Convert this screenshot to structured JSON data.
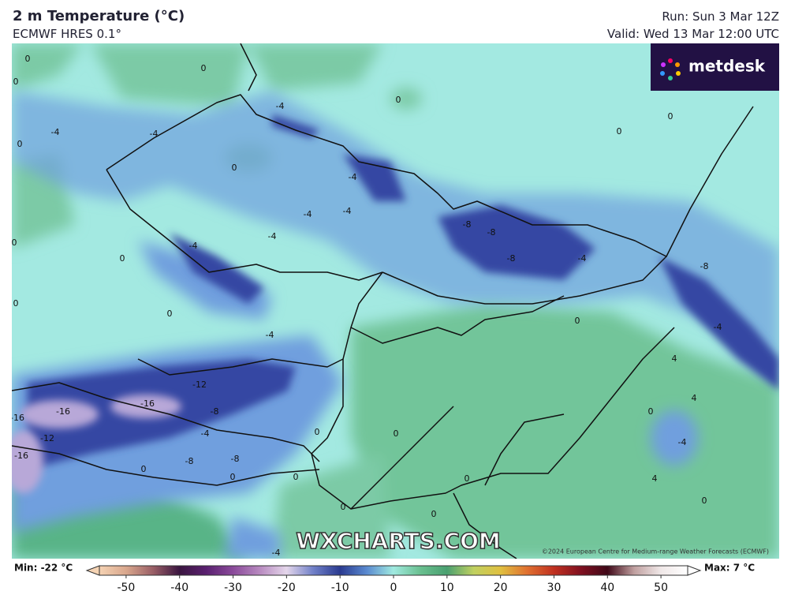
{
  "header": {
    "title": "2 m Temperature (°C)",
    "subtitle": "ECMWF HRES 0.1°",
    "run": "Run: Sun 3 Mar 12Z",
    "valid": "Valid: Wed 13 Mar 12:00 UTC"
  },
  "logo": "metdesk",
  "watermark": "WXCHARTS.COM",
  "copyright": "©2024 European Centre for Medium-range Weather Forecasts (ECMWF)",
  "contour_labels": [
    0,
    -4,
    0,
    0,
    -4,
    -4,
    0,
    0,
    0,
    0,
    -4,
    -4,
    -4,
    -4,
    -4,
    0,
    -8,
    -8,
    -8,
    -4,
    -8,
    -4,
    0,
    0,
    -4,
    -12,
    -16,
    -16,
    -12,
    -16,
    -16,
    -8,
    -4,
    -8,
    -8,
    0,
    0,
    0,
    0,
    0,
    0,
    0,
    0,
    -4,
    4,
    4,
    4,
    0,
    -4,
    0,
    0,
    0,
    0
  ],
  "colorbar": {
    "min_label": "Min: -22 °C",
    "max_label": "Max: 7 °C",
    "lim": [
      -55,
      55
    ],
    "ticks": [
      -50,
      -40,
      -30,
      -20,
      -10,
      0,
      10,
      20,
      30,
      40,
      50
    ],
    "colors": [
      "#f5d3b3",
      "#d9a78d",
      "#9a5f66",
      "#3a1540",
      "#5a2070",
      "#8a4a9a",
      "#b88ac0",
      "#e4d6ea",
      "#7080c8",
      "#2a3a90",
      "#5a8ad0",
      "#a0eae0",
      "#6ac090",
      "#4aa070",
      "#c0d060",
      "#e0c040",
      "#e07030",
      "#c03020",
      "#801020",
      "#400818",
      "#c0a0a0",
      "#f0e8e8",
      "#ffffff"
    ]
  }
}
